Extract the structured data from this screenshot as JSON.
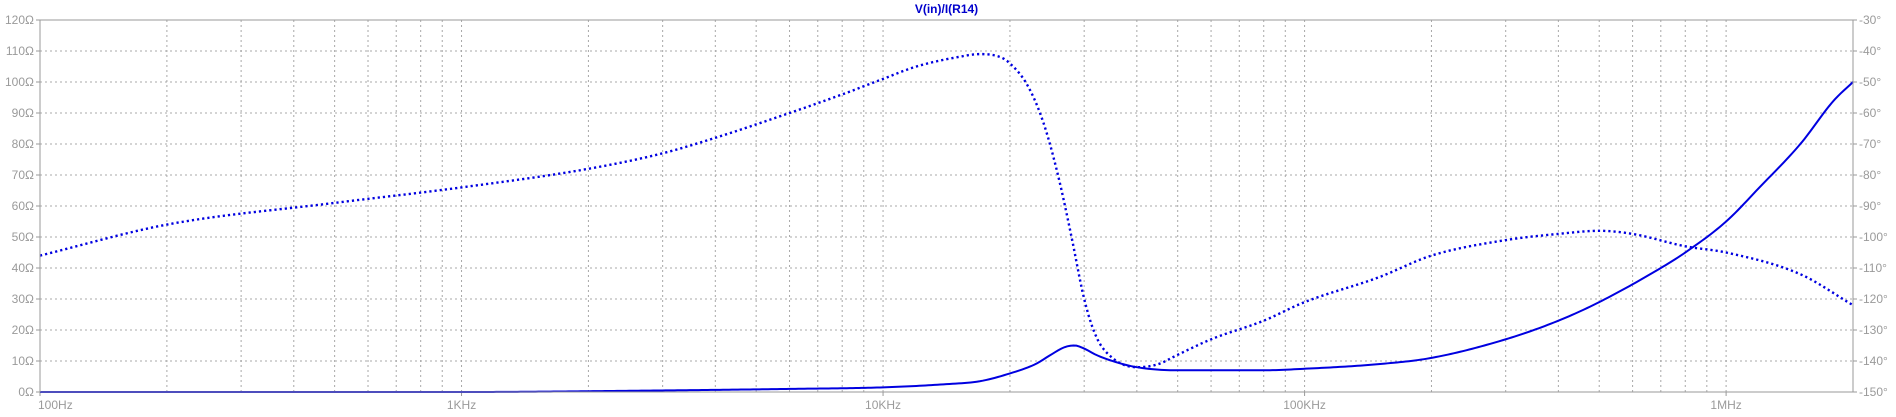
{
  "chart_data": {
    "type": "line",
    "title": "V(in)/I(R14)",
    "x_scale": "log",
    "xlim": [
      100,
      2000000
    ],
    "x_ticks": [
      {
        "value": 100,
        "label": "100Hz"
      },
      {
        "value": 1000,
        "label": "1KHz"
      },
      {
        "value": 10000,
        "label": "10KHz"
      },
      {
        "value": 100000,
        "label": "100KHz"
      },
      {
        "value": 1000000,
        "label": "1MHz"
      }
    ],
    "y_left": {
      "lim": [
        0,
        120
      ],
      "ticks": [
        {
          "value": 0,
          "label": "0Ω"
        },
        {
          "value": 10,
          "label": "10Ω"
        },
        {
          "value": 20,
          "label": "20Ω"
        },
        {
          "value": 30,
          "label": "30Ω"
        },
        {
          "value": 40,
          "label": "40Ω"
        },
        {
          "value": 50,
          "label": "50Ω"
        },
        {
          "value": 60,
          "label": "60Ω"
        },
        {
          "value": 70,
          "label": "70Ω"
        },
        {
          "value": 80,
          "label": "80Ω"
        },
        {
          "value": 90,
          "label": "90Ω"
        },
        {
          "value": 100,
          "label": "100Ω"
        },
        {
          "value": 110,
          "label": "110Ω"
        },
        {
          "value": 120,
          "label": "120Ω"
        }
      ]
    },
    "y_right": {
      "lim": [
        -150,
        -30
      ],
      "ticks": [
        {
          "value": -30,
          "label": "-30°"
        },
        {
          "value": -40,
          "label": "-40°"
        },
        {
          "value": -50,
          "label": "-50°"
        },
        {
          "value": -60,
          "label": "-60°"
        },
        {
          "value": -70,
          "label": "-70°"
        },
        {
          "value": -80,
          "label": "-80°"
        },
        {
          "value": -90,
          "label": "-90°"
        },
        {
          "value": -100,
          "label": "-100°"
        },
        {
          "value": -110,
          "label": "-110°"
        },
        {
          "value": -120,
          "label": "-120°"
        },
        {
          "value": -130,
          "label": "-130°"
        },
        {
          "value": -140,
          "label": "-140°"
        },
        {
          "value": -150,
          "label": "-150°"
        }
      ]
    },
    "grid": true,
    "series": [
      {
        "axis": "left",
        "style": "solid",
        "color": "#0000e0",
        "x": [
          100,
          1000,
          3000,
          6000,
          10000,
          14000,
          17000,
          20000,
          23000,
          25000,
          27000,
          28500,
          30000,
          32000,
          35000,
          40000,
          50000,
          60000,
          80000,
          100000,
          150000,
          200000,
          300000,
          400000,
          500000,
          700000,
          800000,
          1000000,
          1200000,
          1500000,
          1800000,
          2000000
        ],
        "y": [
          0,
          0,
          0.5,
          1,
          1.5,
          2.5,
          3.5,
          6,
          9,
          12,
          14.5,
          15,
          14,
          12,
          10,
          8,
          7,
          7,
          7,
          7.5,
          9,
          11,
          17,
          23,
          29,
          40,
          45,
          55,
          66,
          80,
          94,
          100
        ]
      },
      {
        "axis": "right",
        "style": "dotted",
        "color": "#0000e0",
        "x": [
          100,
          200,
          500,
          1000,
          2000,
          3000,
          4000,
          6000,
          8000,
          10000,
          12000,
          15000,
          17000,
          19000,
          20000,
          22000,
          24000,
          26000,
          28000,
          30000,
          32000,
          35000,
          40000,
          45000,
          50000,
          60000,
          80000,
          100000,
          150000,
          200000,
          300000,
          400000,
          500000,
          600000,
          800000,
          1000000,
          1500000,
          2000000
        ],
        "y": [
          -106,
          -96,
          -89,
          -84,
          -78,
          -73,
          -68,
          -60,
          -54,
          -49,
          -45,
          -42,
          -41,
          -42,
          -44,
          -51,
          -63,
          -80,
          -100,
          -120,
          -132,
          -139,
          -142,
          -141,
          -138,
          -133,
          -127,
          -121,
          -113,
          -106,
          -101,
          -99,
          -98,
          -99,
          -103,
          -105,
          -112,
          -122
        ]
      }
    ]
  }
}
